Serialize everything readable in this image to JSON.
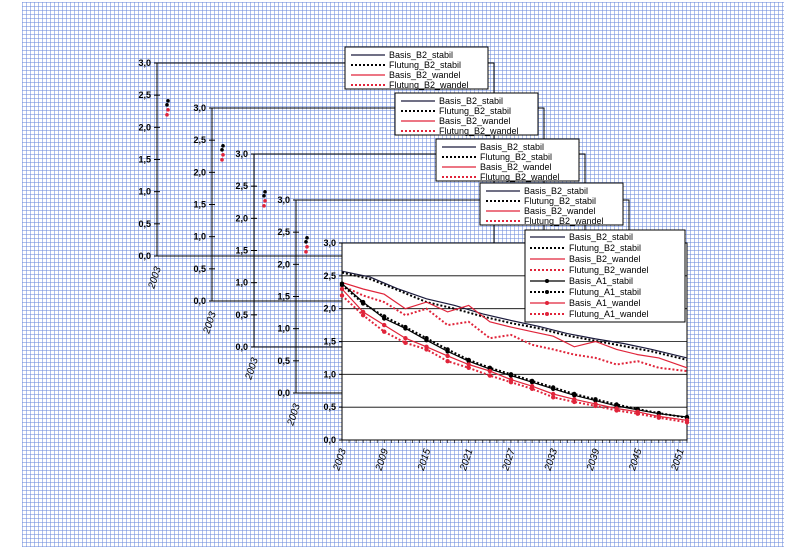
{
  "chart_data": {
    "type": "line",
    "layout_note": "",
    "panels": [
      {
        "y_ticks": [
          "3,0",
          "2,5",
          "2,0",
          "1,5",
          "1,0",
          "0,5",
          "0,0"
        ],
        "x_ticks": [
          "2003"
        ],
        "legend": [
          "Basis_B2_stabil",
          "Flutung_B2_stabil",
          "Basis_B2_wandel",
          "Flutung_B2_wandel"
        ]
      },
      {
        "y_ticks": [
          "3,0",
          "2,5",
          "2,0",
          "1,5",
          "1,0",
          "0,5",
          "0,0"
        ],
        "x_ticks": [
          "2003"
        ],
        "legend": [
          "Basis_B2_stabil",
          "Flutung_B2_stabil",
          "Basis_B2_wandel",
          "Flutung_B2_wandel"
        ]
      },
      {
        "y_ticks": [
          "3,0",
          "2,5",
          "2,0",
          "1,5",
          "1,0",
          "0,5",
          "0,0"
        ],
        "x_ticks": [
          "2003"
        ],
        "legend": [
          "Basis_B2_stabil",
          "Flutung_B2_stabil",
          "Basis_B2_wandel",
          "Flutung_B2_wandel"
        ]
      },
      {
        "y_ticks": [
          "3,0",
          "2,5",
          "2,0",
          "1,5",
          "1,0",
          "0,5",
          "0,0"
        ],
        "x_ticks": [
          "2003"
        ],
        "legend": [
          "Basis_B2_stabil",
          "Flutung_B2_stabil",
          "Basis_B2_wandel",
          "Flutung_B2_wandel"
        ]
      }
    ],
    "main": {
      "y_ticks": [
        "3,0",
        "2,5",
        "2,0",
        "1,5",
        "1,0",
        "0,5",
        "0,0"
      ],
      "x_ticks": [
        "2003",
        "2009",
        "2015",
        "2021",
        "2027",
        "2033",
        "2039",
        "2045",
        "2051"
      ],
      "xlim": [
        2003,
        2052
      ],
      "ylim": [
        0,
        3.0
      ],
      "grid": "horizontal",
      "legend_position": "top-right",
      "series": [
        {
          "name": "Basis_B2_stabil",
          "color": "#1a1a3c",
          "style": "solid",
          "x": [
            2003,
            2007,
            2011,
            2015,
            2019,
            2023,
            2027,
            2031,
            2035,
            2039,
            2043,
            2047,
            2052
          ],
          "y": [
            2.57,
            2.48,
            2.3,
            2.15,
            2.05,
            1.92,
            1.82,
            1.73,
            1.62,
            1.54,
            1.47,
            1.38,
            1.25
          ]
        },
        {
          "name": "Flutung_B2_stabil",
          "color": "#000000",
          "style": "dotted",
          "x": [
            2003,
            2007,
            2011,
            2015,
            2019,
            2023,
            2027,
            2031,
            2035,
            2039,
            2043,
            2047,
            2052
          ],
          "y": [
            2.55,
            2.45,
            2.28,
            2.1,
            2.0,
            1.88,
            1.78,
            1.7,
            1.59,
            1.51,
            1.43,
            1.35,
            1.22
          ]
        },
        {
          "name": "Basis_B2_wandel",
          "color": "#e0243a",
          "style": "solid",
          "x": [
            2003,
            2006,
            2009,
            2012,
            2015,
            2018,
            2021,
            2024,
            2027,
            2030,
            2033,
            2036,
            2039,
            2042,
            2045,
            2048,
            2052
          ],
          "y": [
            2.4,
            2.3,
            2.22,
            2.0,
            2.1,
            1.95,
            2.05,
            1.8,
            1.72,
            1.65,
            1.58,
            1.42,
            1.5,
            1.38,
            1.3,
            1.25,
            1.1
          ]
        },
        {
          "name": "Flutung_B2_wandel",
          "color": "#e0243a",
          "style": "dotted",
          "x": [
            2003,
            2006,
            2009,
            2012,
            2015,
            2018,
            2021,
            2024,
            2027,
            2030,
            2033,
            2036,
            2039,
            2042,
            2045,
            2048,
            2052
          ],
          "y": [
            2.35,
            2.2,
            2.1,
            1.9,
            2.0,
            1.75,
            1.8,
            1.55,
            1.6,
            1.45,
            1.38,
            1.3,
            1.25,
            1.15,
            1.2,
            1.1,
            1.05
          ]
        },
        {
          "name": "Basis_A1_stabil",
          "color": "#000000",
          "style": "solid-marker",
          "x": [
            2003,
            2006,
            2009,
            2012,
            2015,
            2018,
            2021,
            2024,
            2027,
            2030,
            2033,
            2036,
            2039,
            2042,
            2045,
            2048,
            2052
          ],
          "y": [
            2.38,
            2.1,
            1.85,
            1.7,
            1.52,
            1.35,
            1.2,
            1.08,
            0.98,
            0.88,
            0.78,
            0.68,
            0.6,
            0.52,
            0.46,
            0.4,
            0.35
          ]
        },
        {
          "name": "Flutung_A1_stabil",
          "color": "#000000",
          "style": "dotted-marker",
          "x": [
            2003,
            2006,
            2009,
            2012,
            2015,
            2018,
            2021,
            2024,
            2027,
            2030,
            2033,
            2036,
            2039,
            2042,
            2045,
            2048,
            2052
          ],
          "y": [
            2.36,
            2.08,
            1.88,
            1.72,
            1.55,
            1.38,
            1.22,
            1.1,
            1.0,
            0.9,
            0.8,
            0.7,
            0.62,
            0.54,
            0.47,
            0.41,
            0.34
          ]
        },
        {
          "name": "Basis_A1_wandel",
          "color": "#e0243a",
          "style": "solid-marker",
          "x": [
            2003,
            2006,
            2009,
            2012,
            2015,
            2018,
            2021,
            2024,
            2027,
            2030,
            2033,
            2036,
            2039,
            2042,
            2045,
            2048,
            2052
          ],
          "y": [
            2.3,
            1.95,
            1.75,
            1.55,
            1.42,
            1.28,
            1.15,
            1.05,
            0.92,
            0.82,
            0.7,
            0.62,
            0.55,
            0.48,
            0.43,
            0.36,
            0.3
          ]
        },
        {
          "name": "Flutung_A1_wandel",
          "color": "#e0243a",
          "style": "dotted-marker",
          "x": [
            2003,
            2006,
            2009,
            2012,
            2015,
            2018,
            2021,
            2024,
            2027,
            2030,
            2033,
            2036,
            2039,
            2042,
            2045,
            2048,
            2052
          ],
          "y": [
            2.2,
            1.9,
            1.65,
            1.48,
            1.38,
            1.2,
            1.1,
            0.98,
            0.88,
            0.78,
            0.65,
            0.58,
            0.52,
            0.45,
            0.4,
            0.34,
            0.27
          ]
        }
      ]
    }
  }
}
